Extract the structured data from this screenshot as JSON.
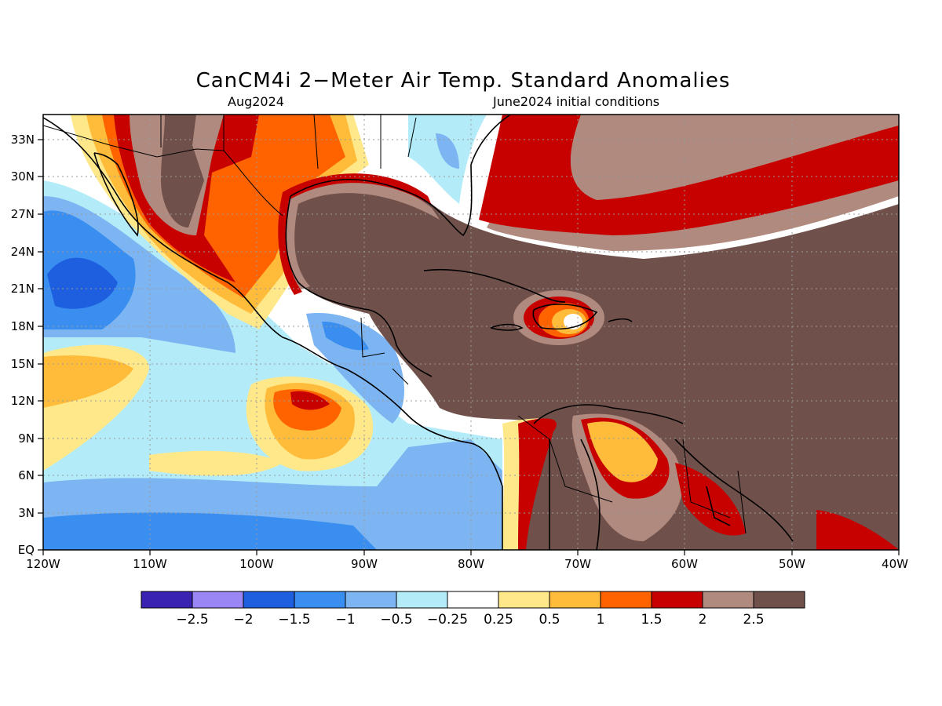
{
  "title": "CanCM4i 2−Meter Air Temp. Standard Anomalies",
  "subtitle_left": "Aug2024",
  "subtitle_right": "June2024 initial conditions",
  "map": {
    "lon_range": [
      -120,
      -40
    ],
    "lat_range": [
      0,
      35
    ],
    "x_ticks": [
      "120W",
      "110W",
      "100W",
      "90W",
      "80W",
      "70W",
      "60W",
      "50W",
      "40W"
    ],
    "y_ticks": [
      "EQ",
      "3N",
      "6N",
      "9N",
      "12N",
      "15N",
      "18N",
      "21N",
      "24N",
      "27N",
      "30N",
      "33N"
    ],
    "grid": true
  },
  "colorbar": {
    "colors": [
      "#3a23b3",
      "#9a86f5",
      "#1e5fe0",
      "#3a8ef0",
      "#7db5f2",
      "#b3ecf8",
      "#ffffff",
      "#ffe88a",
      "#ffbb3a",
      "#ff6300",
      "#c70000",
      "#b08a7e",
      "#70504a"
    ],
    "labels": [
      "−2.5",
      "−2",
      "−1.5",
      "−1",
      "−0.5",
      "−0.25",
      "0.25",
      "0.5",
      "1",
      "1.5",
      "2",
      "2.5"
    ]
  }
}
